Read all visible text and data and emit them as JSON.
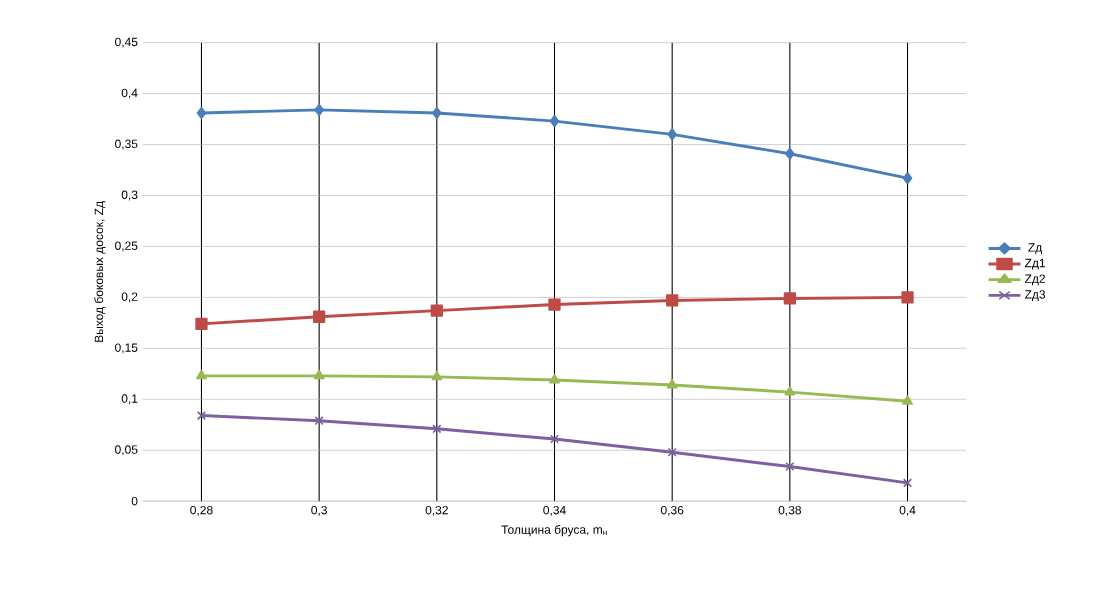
{
  "chart_data": {
    "type": "line",
    "xlabel": "Толщина бруса, m$_{н}$",
    "ylabel": "Выход боковых досок, Zд",
    "categories": [
      "0,28",
      "0,3",
      "0,32",
      "0,34",
      "0,36",
      "0,38",
      "0,4"
    ],
    "series": [
      {
        "name": "Zд",
        "color": "#4a7ebb",
        "marker": "diamond",
        "values": [
          0.381,
          0.384,
          0.381,
          0.373,
          0.36,
          0.341,
          0.317
        ]
      },
      {
        "name": "Zд1",
        "color": "#be4b48",
        "marker": "square",
        "values": [
          0.174,
          0.181,
          0.187,
          0.193,
          0.197,
          0.199,
          0.2
        ]
      },
      {
        "name": "Zд2",
        "color": "#98b954",
        "marker": "triangle",
        "values": [
          0.123,
          0.123,
          0.122,
          0.119,
          0.114,
          0.107,
          0.098
        ]
      },
      {
        "name": "Zд3",
        "color": "#7d60a0",
        "marker": "cross",
        "values": [
          0.084,
          0.079,
          0.071,
          0.061,
          0.048,
          0.034,
          0.018
        ]
      }
    ],
    "ylim": [
      0,
      0.45
    ],
    "yticks": [
      0,
      {
        "value": 0.05,
        "label": "0,05"
      },
      {
        "value": 0.1,
        "label": "0,1"
      },
      {
        "value": 0.15,
        "label": "0,15"
      },
      {
        "value": 0.2,
        "label": "0,2"
      },
      {
        "value": 0.25,
        "label": "0,25"
      },
      {
        "value": 0.3,
        "label": "0,3"
      },
      {
        "value": 0.35,
        "label": "0,35"
      },
      {
        "value": 0.4,
        "label": "0,4"
      },
      {
        "value": 0.45,
        "label": "0,45"
      }
    ],
    "grid": true,
    "legend": "right",
    "line_style": "solid"
  }
}
